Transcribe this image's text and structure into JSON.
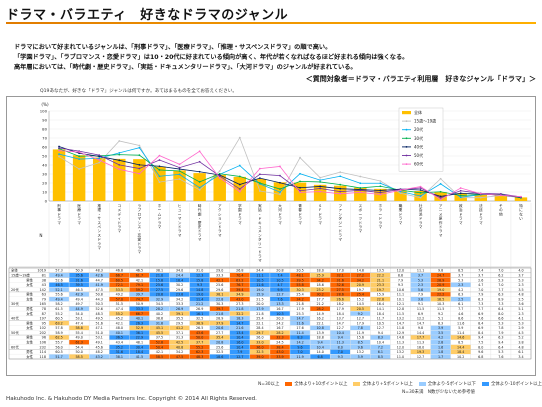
{
  "page": {
    "title": "ドラマ・バラエティ　好きなドラマのジャンル",
    "descriptions": [
      "ドラマにおいて好まれているジャンルは、「刑事ドラマ」、「医療ドラマ」、「推理・サスペンスドラマ」の順で高い。",
      "「学園ドラマ」、「ラブロマンス・恋愛ドラマ」は10・20代に好まれている傾向が高く、年代が若くなればなるほど好まれる傾向は強くなる。",
      "高年層においては、「時代劇・歴史ドラマ」、「実話・ドキュメンタリードラマ」、「大河ドラマ」のジャンルが好まれている。"
    ],
    "subject": "＜質問対象者＝ドラマ・バラエティ利用層　好きなジャンル「ドラマ」＞",
    "question": "Q19あなたが、好きな「ドラマ」ジャンルは何ですか。あてはまるものを全てお答えください。",
    "footer": "Hakuhodo Inc. & Hakuhodo DY Media Partners Inc. Copyright © 2014 All Rights Reserved.",
    "notes": [
      "N=30以上",
      "全体より+10ポイント以上",
      "全体より+5ポイント以上",
      "全体より-5ポイント以下",
      "全体より-10ポイント以上"
    ],
    "note2": "N=30未満　N数が少ないため参考値",
    "colors": {
      "bar": "#ffc000",
      "plus10": "#ff6600",
      "plus5": "#ffcc66",
      "minus5": "#99ccff",
      "minus10": "#3399ff"
    }
  },
  "chart_data": {
    "type": "bar",
    "ylim": [
      0,
      100
    ],
    "yticks": [
      0,
      10,
      20,
      30,
      40,
      50,
      60,
      70,
      80,
      90,
      100
    ],
    "unit": "(%)",
    "categories": [
      "刑事ドラマ",
      "医療ドラマ",
      "推理・サスペンスドラマ",
      "コメディドラマ",
      "ラブロマンス・恋愛ドラマ",
      "ホームドラマ",
      "ヒューマンドラマ",
      "時代劇・歴史ドラマ",
      "アクションドラマ",
      "学園ドラマ",
      "実話・ドキュメンタリードラマ",
      "大河ドラマ",
      "青春ドラマ",
      "SFドラマ",
      "ファンタジードラマ",
      "スポーツドラマ",
      "ホラードラマ",
      "職業ドラマ",
      "社会派ドラマ",
      "アニメ原作ドラマ",
      "政治ドラマ",
      "法廷ドラマ",
      "その他",
      "特にない"
    ],
    "n_label": "N",
    "series": [
      {
        "name": "全体",
        "color": "#ffc000",
        "values": [
          57.3,
          50.9,
          48.3,
          46.8,
          46.5,
          38.1,
          34.0,
          31.0,
          29.0,
          26.8,
          24.4,
          20.8,
          20.5,
          18.0,
          17.0,
          14.8,
          13.5,
          12.0,
          11.1,
          9.8,
          8.5,
          7.4,
          7.0,
          4.0
        ]
      },
      {
        "name": "15歳～19歳",
        "color": "#c0c0c0",
        "values": [
          49.4,
          35.6,
          42.6,
          66.7,
          61.7,
          21.0,
          24.4,
          12.3,
          33.3,
          70.4,
          11.1,
          7.4,
          48.1,
          25.9,
          32.1,
          27.2,
          22.2,
          8.6,
          3.7,
          24.7,
          3.7,
          3.7,
          6.2,
          3.7
        ]
      },
      {
        "name": "20代",
        "color": "#00b0f0",
        "values": [
          52.1,
          46.5,
          47.5,
          53.5,
          59.2,
          27.5,
          29.6,
          14.8,
          29.6,
          39.4,
          19.0,
          9.9,
          30.3,
          23.2,
          27.5,
          19.7,
          19.7,
          10.6,
          5.6,
          19.0,
          4.2,
          7.0,
          7.7,
          3.5
        ]
      },
      {
        "name": "30代",
        "color": "#00b050",
        "values": [
          58.2,
          49.7,
          50.3,
          51.5,
          50.9,
          34.5,
          33.3,
          21.2,
          30.3,
          27.3,
          20.0,
          13.3,
          21.8,
          21.2,
          18.2,
          14.5,
          16.4,
          12.1,
          9.1,
          10.3,
          6.1,
          7.3,
          7.3,
          3.6
        ]
      },
      {
        "name": "40代",
        "color": "#002060",
        "values": [
          60.5,
          53.1,
          49.5,
          45.2,
          40.1,
          38.6,
          35.5,
          32.5,
          28.9,
          18.3,
          25.4,
          20.3,
          14.7,
          16.2,
          13.7,
          12.7,
          11.7,
          13.2,
          12.2,
          5.1,
          8.6,
          7.6,
          6.6,
          4.1
        ]
      },
      {
        "name": "50代",
        "color": "#7030a0",
        "values": [
          58.9,
          55.4,
          51.0,
          40.1,
          36.1,
          45.5,
          37.1,
          43.6,
          27.7,
          13.4,
          29.7,
          28.2,
          11.4,
          13.9,
          10.4,
          11.9,
          9.4,
          12.9,
          14.4,
          3.5,
          11.4,
          8.4,
          7.9,
          4.5
        ]
      },
      {
        "name": "60代",
        "color": "#ff66cc",
        "values": [
          56.0,
          54.4,
          45.6,
          35.2,
          30.4,
          50.4,
          40.8,
          55.2,
          25.6,
          10.4,
          36.0,
          38.4,
          9.6,
          10.4,
          8.0,
          9.6,
          7.2,
          12.0,
          16.0,
          1.6,
          14.4,
          8.0,
          6.4,
          4.8
        ]
      }
    ],
    "table": {
      "rows": [
        {
          "group": "全体",
          "label": "",
          "n": "1019",
          "values": [
            57.3,
            50.9,
            48.3,
            46.8,
            46.5,
            38.1,
            34.0,
            31.0,
            29.0,
            26.8,
            24.4,
            20.8,
            20.5,
            18.0,
            17.0,
            14.8,
            13.5,
            12.0,
            11.1,
            9.8,
            8.5,
            7.4,
            7.0,
            4.0
          ]
        },
        {
          "group": "15歳～19歳",
          "label": "",
          "n": "81",
          "values": [
            49.4,
            35.6,
            42.6,
            66.7,
            61.7,
            21.0,
            24.4,
            12.3,
            33.3,
            70.4,
            11.1,
            7.4,
            48.1,
            25.9,
            32.1,
            27.2,
            22.2,
            8.6,
            3.7,
            24.7,
            3.7,
            3.7,
            6.2,
            3.7
          ]
        },
        {
          "group": "",
          "label": "男性",
          "n": "38",
          "values": [
            52.6,
            31.6,
            44.7,
            60.5,
            42.1,
            15.8,
            18.4,
            15.8,
            42.1,
            63.2,
            10.5,
            10.5,
            39.5,
            34.2,
            31.6,
            34.2,
            21.1,
            7.9,
            5.3,
            28.9,
            5.3,
            2.6,
            5.3,
            5.3
          ]
        },
        {
          "group": "",
          "label": "女性",
          "n": "43",
          "values": [
            46.5,
            39.5,
            41.9,
            72.1,
            79.1,
            25.6,
            30.2,
            9.3,
            25.6,
            76.7,
            11.6,
            4.7,
            55.8,
            18.6,
            32.6,
            20.9,
            23.3,
            9.3,
            2.3,
            20.9,
            2.3,
            4.7,
            7.0,
            2.3
          ]
        },
        {
          "group": "20代",
          "label": "",
          "n": "142",
          "values": [
            52.1,
            46.5,
            47.5,
            53.5,
            59.2,
            27.5,
            29.6,
            14.8,
            29.6,
            39.4,
            19.0,
            9.9,
            30.3,
            23.2,
            27.5,
            19.7,
            19.7,
            10.6,
            5.6,
            19.0,
            4.2,
            7.0,
            7.7,
            3.5
          ]
        },
        {
          "group": "",
          "label": "男性",
          "n": "63",
          "values": [
            55.6,
            42.9,
            50.8,
            49.2,
            39.7,
            20.6,
            23.8,
            19.0,
            38.1,
            34.9,
            15.9,
            12.7,
            25.4,
            30.2,
            28.6,
            25.4,
            15.9,
            11.1,
            7.9,
            22.2,
            6.3,
            7.9,
            6.3,
            4.8
          ]
        },
        {
          "group": "",
          "label": "女性",
          "n": "79",
          "values": [
            49.4,
            49.4,
            44.3,
            57.0,
            74.7,
            32.9,
            34.2,
            11.4,
            22.8,
            43.0,
            21.5,
            7.6,
            34.2,
            17.7,
            26.6,
            15.2,
            22.8,
            10.1,
            3.8,
            16.5,
            2.5,
            6.3,
            8.9,
            2.5
          ]
        },
        {
          "group": "30代",
          "label": "",
          "n": "165",
          "values": [
            58.2,
            49.7,
            50.3,
            51.5,
            50.9,
            34.5,
            33.3,
            21.2,
            30.3,
            27.3,
            20.0,
            13.3,
            21.8,
            21.2,
            18.2,
            14.5,
            16.4,
            12.1,
            9.1,
            10.3,
            6.1,
            7.3,
            7.3,
            3.6
          ]
        },
        {
          "group": "",
          "label": "男性",
          "n": "78",
          "values": [
            61.5,
            44.9,
            52.6,
            47.4,
            33.3,
            28.2,
            26.9,
            26.9,
            39.7,
            21.8,
            17.9,
            16.7,
            17.9,
            28.2,
            17.9,
            20.5,
            14.1,
            12.8,
            11.5,
            11.5,
            7.7,
            7.7,
            6.4,
            5.1
          ]
        },
        {
          "group": "",
          "label": "女性",
          "n": "87",
          "values": [
            55.2,
            54.0,
            48.3,
            55.2,
            66.7,
            40.2,
            39.1,
            16.1,
            21.8,
            32.2,
            21.8,
            10.3,
            25.3,
            14.9,
            18.4,
            9.2,
            18.4,
            11.5,
            6.9,
            9.2,
            4.6,
            6.9,
            8.0,
            2.3
          ]
        },
        {
          "group": "40代",
          "label": "",
          "n": "197",
          "values": [
            60.5,
            53.1,
            49.5,
            45.2,
            40.1,
            38.6,
            35.5,
            32.5,
            28.9,
            18.3,
            25.4,
            20.3,
            14.7,
            16.2,
            13.7,
            12.7,
            11.7,
            13.2,
            12.2,
            5.1,
            8.6,
            7.6,
            6.6,
            4.1
          ]
        },
        {
          "group": "",
          "label": "男性",
          "n": "95",
          "values": [
            63.2,
            47.4,
            51.6,
            42.1,
            26.3,
            31.6,
            29.5,
            38.9,
            37.9,
            14.7,
            22.1,
            24.2,
            11.6,
            22.1,
            14.7,
            17.9,
            10.5,
            14.7,
            14.7,
            6.3,
            11.6,
            8.4,
            5.3,
            5.3
          ]
        },
        {
          "group": "",
          "label": "女性",
          "n": "102",
          "values": [
            57.8,
            58.8,
            47.1,
            48.0,
            52.9,
            45.1,
            41.2,
            26.5,
            20.6,
            21.6,
            28.4,
            16.7,
            17.6,
            10.8,
            12.7,
            7.8,
            12.7,
            11.8,
            9.8,
            3.9,
            5.9,
            6.9,
            7.8,
            2.9
          ]
        },
        {
          "group": "50代",
          "label": "",
          "n": "202",
          "values": [
            58.9,
            55.4,
            51.0,
            40.1,
            36.1,
            45.5,
            37.1,
            43.6,
            27.7,
            13.4,
            29.7,
            28.2,
            11.4,
            13.9,
            10.4,
            11.9,
            9.4,
            12.9,
            14.4,
            3.5,
            11.4,
            8.4,
            7.9,
            4.5
          ]
        },
        {
          "group": "",
          "label": "男性",
          "n": "96",
          "values": [
            62.5,
            49.0,
            53.1,
            36.5,
            22.9,
            37.5,
            31.3,
            50.0,
            35.4,
            10.4,
            26.0,
            32.3,
            8.3,
            18.8,
            9.4,
            15.6,
            8.3,
            14.6,
            17.7,
            4.2,
            14.6,
            9.4,
            6.3,
            5.2
          ]
        },
        {
          "group": "",
          "label": "女性",
          "n": "106",
          "values": [
            55.7,
            61.3,
            49.1,
            43.4,
            48.1,
            52.8,
            42.5,
            37.7,
            20.8,
            16.0,
            33.0,
            24.5,
            14.2,
            9.4,
            11.3,
            8.5,
            10.4,
            11.3,
            11.3,
            2.8,
            8.5,
            7.5,
            9.4,
            3.8
          ]
        },
        {
          "group": "60代",
          "label": "",
          "n": "232",
          "values": [
            56.0,
            54.4,
            45.6,
            35.2,
            30.4,
            50.4,
            40.8,
            55.2,
            25.6,
            10.4,
            36.0,
            38.4,
            9.6,
            10.4,
            8.0,
            9.6,
            7.2,
            12.0,
            16.0,
            1.6,
            14.4,
            8.0,
            6.4,
            4.8
          ]
        },
        {
          "group": "",
          "label": "男性",
          "n": "114",
          "values": [
            60.5,
            50.0,
            48.2,
            31.6,
            18.4,
            42.1,
            34.2,
            62.3,
            32.5,
            7.9,
            32.5,
            43.0,
            7.0,
            14.0,
            7.0,
            13.2,
            6.1,
            13.2,
            19.3,
            1.8,
            18.4,
            9.6,
            5.3,
            6.1
          ]
        },
        {
          "group": "",
          "label": "女性",
          "n": "118",
          "values": [
            51.7,
            58.5,
            43.2,
            38.1,
            41.5,
            58.5,
            47.5,
            48.3,
            18.6,
            12.7,
            39.0,
            33.9,
            11.9,
            6.8,
            9.3,
            5.9,
            8.5,
            11.0,
            12.7,
            1.7,
            10.2,
            6.8,
            7.6,
            3.4
          ]
        }
      ]
    }
  }
}
